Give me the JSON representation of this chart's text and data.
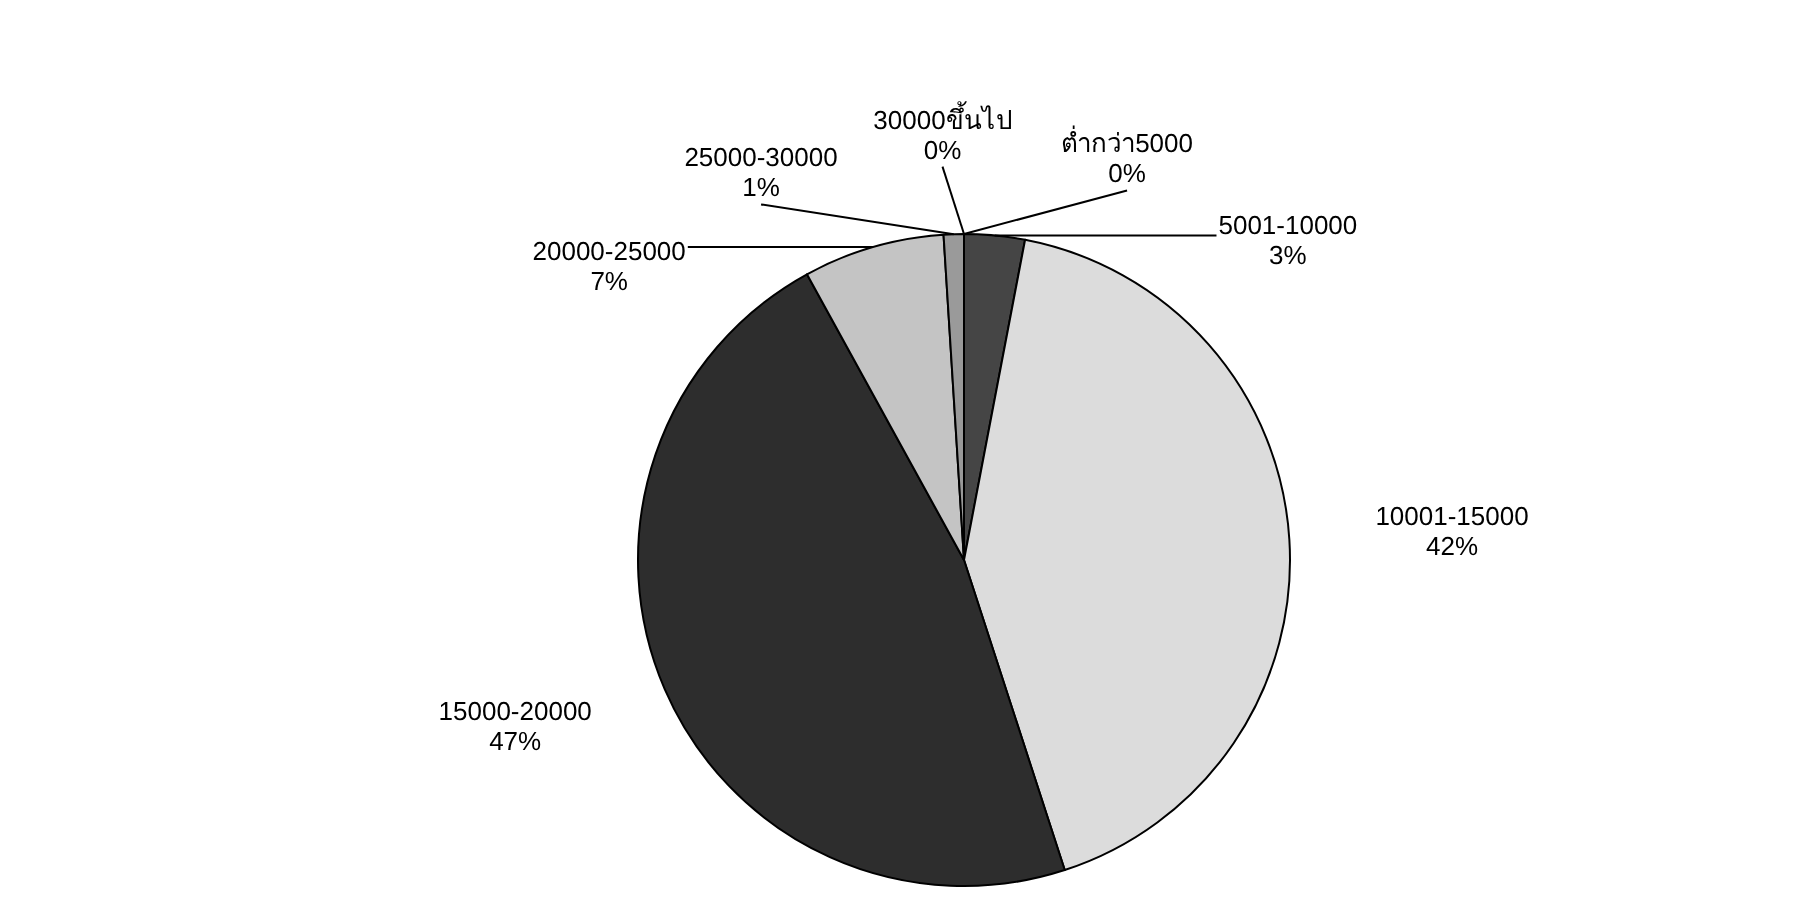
{
  "chart_data": {
    "type": "pie",
    "categories": [
      "ต่ำกว่า5000",
      "5001-10000",
      "10001-15000",
      "15000-20000",
      "20000-25000",
      "25000-30000",
      "30000ขึ้นไป"
    ],
    "values": [
      0,
      3,
      42,
      47,
      7,
      1,
      0
    ],
    "value_labels": [
      "0%",
      "3%",
      "42%",
      "47%",
      "7%",
      "1%",
      "0%"
    ],
    "colors": [
      "#111111",
      "#454545",
      "#dcdcdc",
      "#2d2d2d",
      "#c4c4c4",
      "#9a9a9a",
      "#111111"
    ]
  }
}
